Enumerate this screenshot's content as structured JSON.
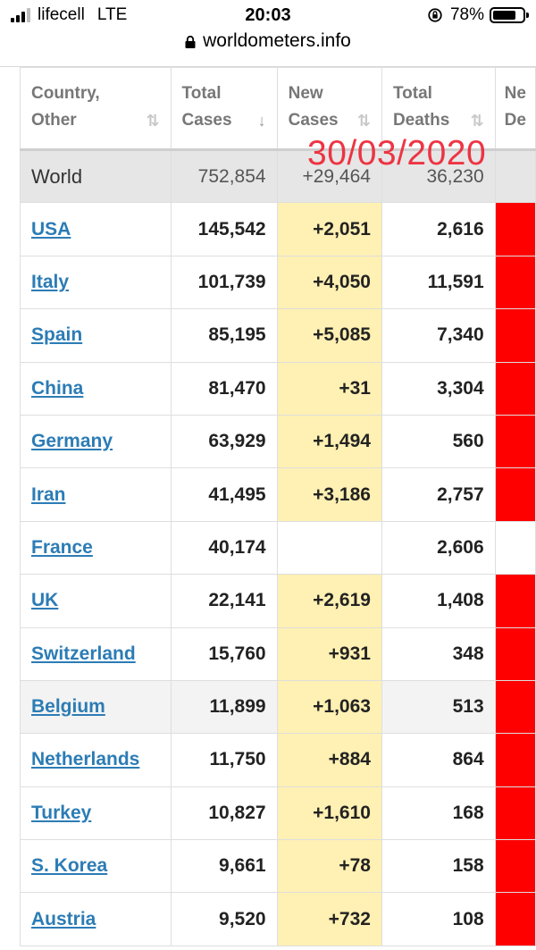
{
  "status_bar": {
    "carrier": "lifecell",
    "network": "LTE",
    "time": "20:03",
    "battery": "78%",
    "battery_level": 0.78
  },
  "url_bar": {
    "domain": "worldometers.info"
  },
  "overlay_date": "30/03/2020",
  "table": {
    "headers": [
      {
        "line1": "Country,",
        "line2": "Other",
        "sort": "⇅"
      },
      {
        "line1": "Total",
        "line2": "Cases",
        "sort": "↓"
      },
      {
        "line1": "New",
        "line2": "Cases",
        "sort": "⇅"
      },
      {
        "line1": "Total",
        "line2": "Deaths",
        "sort": "⇅"
      },
      {
        "line1": "Ne",
        "line2": "De",
        "sort": ""
      }
    ],
    "world": {
      "country": "World",
      "total_cases": "752,854",
      "new_cases": "+29,464",
      "total_deaths": "36,230"
    },
    "rows": [
      {
        "country": "USA",
        "total_cases": "145,542",
        "new_cases": "+2,051",
        "total_deaths": "2,616"
      },
      {
        "country": "Italy",
        "total_cases": "101,739",
        "new_cases": "+4,050",
        "total_deaths": "11,591"
      },
      {
        "country": "Spain",
        "total_cases": "85,195",
        "new_cases": "+5,085",
        "total_deaths": "7,340"
      },
      {
        "country": "China",
        "total_cases": "81,470",
        "new_cases": "+31",
        "total_deaths": "3,304"
      },
      {
        "country": "Germany",
        "total_cases": "63,929",
        "new_cases": "+1,494",
        "total_deaths": "560"
      },
      {
        "country": "Iran",
        "total_cases": "41,495",
        "new_cases": "+3,186",
        "total_deaths": "2,757"
      },
      {
        "country": "France",
        "total_cases": "40,174",
        "new_cases": "",
        "total_deaths": "2,606"
      },
      {
        "country": "UK",
        "total_cases": "22,141",
        "new_cases": "+2,619",
        "total_deaths": "1,408"
      },
      {
        "country": "Switzerland",
        "total_cases": "15,760",
        "new_cases": "+931",
        "total_deaths": "348"
      },
      {
        "country": "Belgium",
        "total_cases": "11,899",
        "new_cases": "+1,063",
        "total_deaths": "513"
      },
      {
        "country": "Netherlands",
        "total_cases": "11,750",
        "new_cases": "+884",
        "total_deaths": "864"
      },
      {
        "country": "Turkey",
        "total_cases": "10,827",
        "new_cases": "+1,610",
        "total_deaths": "168"
      },
      {
        "country": "S. Korea",
        "total_cases": "9,661",
        "new_cases": "+78",
        "total_deaths": "158"
      },
      {
        "country": "Austria",
        "total_cases": "9,520",
        "new_cases": "+732",
        "total_deaths": "108"
      }
    ]
  },
  "colors": {
    "link": "#2c7cb5",
    "new_cases_bg": "#fff0b3",
    "new_deaths_bg": "#ff0000",
    "overlay": "#ee2b3a",
    "world_row_bg": "#e6e6e6"
  }
}
